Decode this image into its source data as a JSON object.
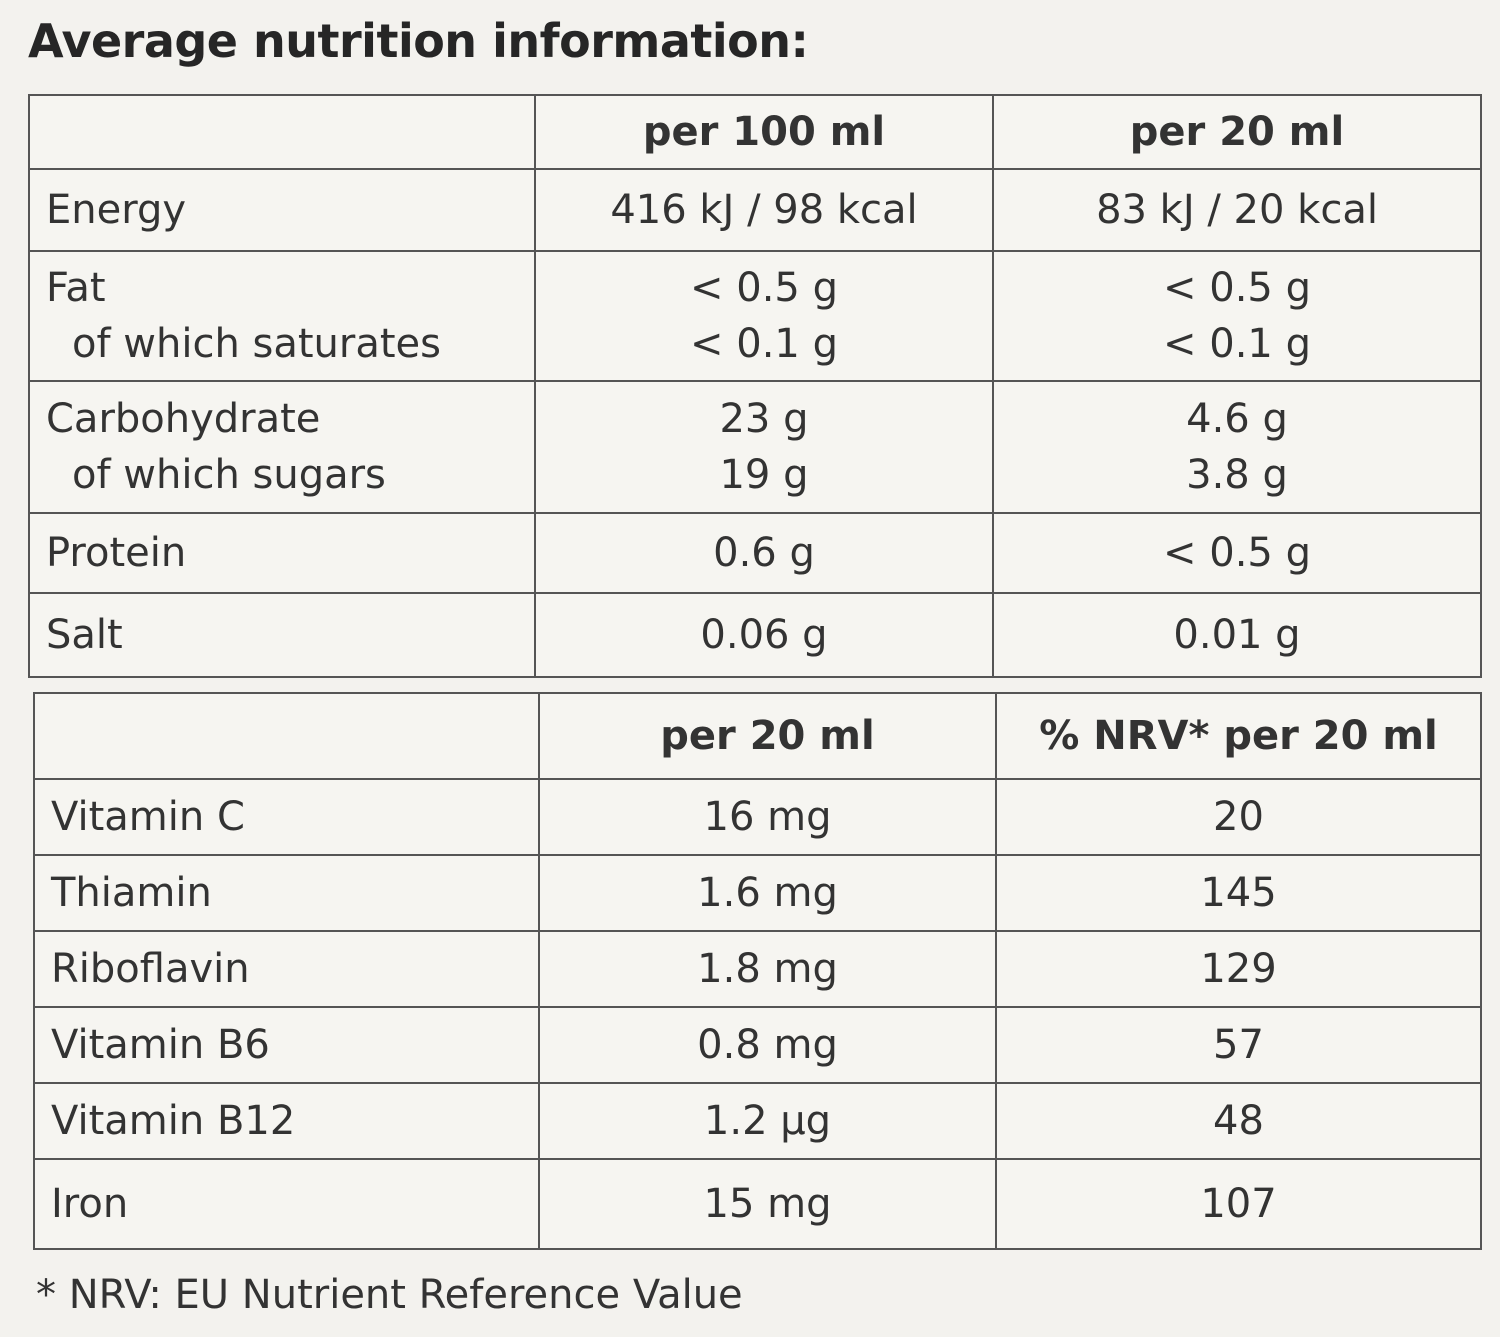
{
  "title": "Average nutrition information:",
  "nutrition_table": {
    "headers": [
      "",
      "per 100 ml",
      "per 20 ml"
    ],
    "rows": [
      {
        "label": "Energy",
        "per_100ml": "416 kJ / 98 kcal",
        "per_20ml": "83 kJ / 20 kcal"
      },
      {
        "label": "Fat",
        "sub_label": "of which saturates",
        "per_100ml": "< 0.5 g",
        "per_100ml_sub": "< 0.1 g",
        "per_20ml": "< 0.5 g",
        "per_20ml_sub": "< 0.1 g"
      },
      {
        "label": "Carbohydrate",
        "sub_label": "of which sugars",
        "per_100ml": "23 g",
        "per_100ml_sub": "19 g",
        "per_20ml": "4.6 g",
        "per_20ml_sub": "3.8 g"
      },
      {
        "label": "Protein",
        "per_100ml": "0.6 g",
        "per_20ml": "< 0.5 g"
      },
      {
        "label": "Salt",
        "per_100ml": "0.06 g",
        "per_20ml": "0.01 g"
      }
    ]
  },
  "vitamin_table": {
    "headers": [
      "",
      "per 20 ml",
      "% NRV* per 20 ml"
    ],
    "rows": [
      {
        "label": "Vitamin C",
        "per_20ml": "16 mg",
        "nrv": "20"
      },
      {
        "label": "Thiamin",
        "per_20ml": "1.6 mg",
        "nrv": "145"
      },
      {
        "label": "Riboflavin",
        "per_20ml": "1.8 mg",
        "nrv": "129"
      },
      {
        "label": "Vitamin B6",
        "per_20ml": "0.8 mg",
        "nrv": "57"
      },
      {
        "label": "Vitamin B12",
        "per_20ml": "1.2 µg",
        "nrv": "48"
      },
      {
        "label": "Iron",
        "per_20ml": "15 mg",
        "nrv": "107"
      }
    ]
  },
  "footnote": "* NRV: EU Nutrient Reference Value"
}
